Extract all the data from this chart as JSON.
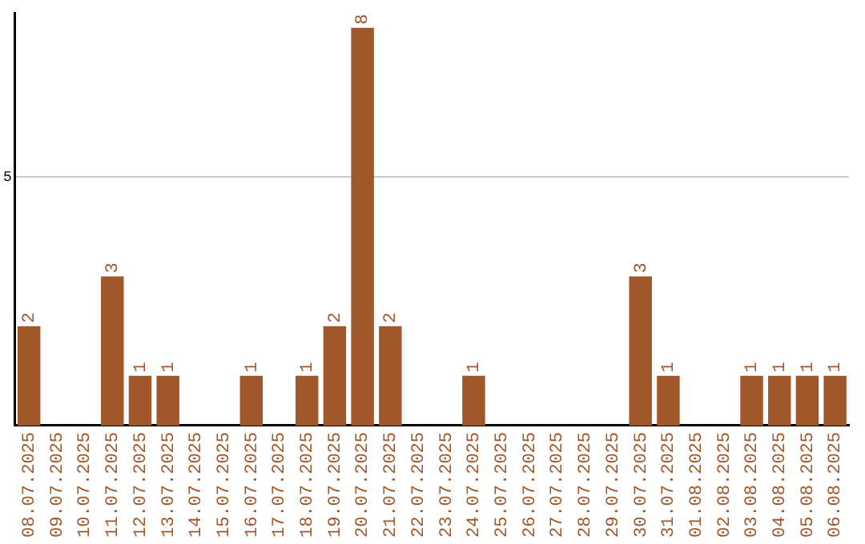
{
  "chart_data": {
    "type": "bar",
    "categories": [
      "08.07.2025",
      "09.07.2025",
      "10.07.2025",
      "11.07.2025",
      "12.07.2025",
      "13.07.2025",
      "14.07.2025",
      "15.07.2025",
      "16.07.2025",
      "17.07.2025",
      "18.07.2025",
      "19.07.2025",
      "20.07.2025",
      "21.07.2025",
      "22.07.2025",
      "23.07.2025",
      "24.07.2025",
      "25.07.2025",
      "26.07.2025",
      "27.07.2025",
      "28.07.2025",
      "29.07.2025",
      "30.07.2025",
      "31.07.2025",
      "01.08.2025",
      "02.08.2025",
      "03.08.2025",
      "04.08.2025",
      "05.08.2025",
      "06.08.2025"
    ],
    "values": [
      2,
      0,
      0,
      3,
      1,
      1,
      0,
      0,
      1,
      0,
      1,
      2,
      8,
      2,
      0,
      0,
      1,
      0,
      0,
      0,
      0,
      0,
      3,
      1,
      0,
      0,
      1,
      1,
      1,
      1
    ],
    "value_labels": [
      "2",
      null,
      null,
      "3",
      "1",
      "1",
      null,
      null,
      "1",
      null,
      "1",
      "2",
      "8",
      "2",
      null,
      null,
      "1",
      null,
      null,
      null,
      null,
      null,
      "3",
      "1",
      null,
      null,
      "1",
      "1",
      "1",
      "1"
    ],
    "color": "#a0572a",
    "ylim": [
      0,
      8.3
    ],
    "yticks": [
      5
    ],
    "grid": "y",
    "legend": false
  }
}
